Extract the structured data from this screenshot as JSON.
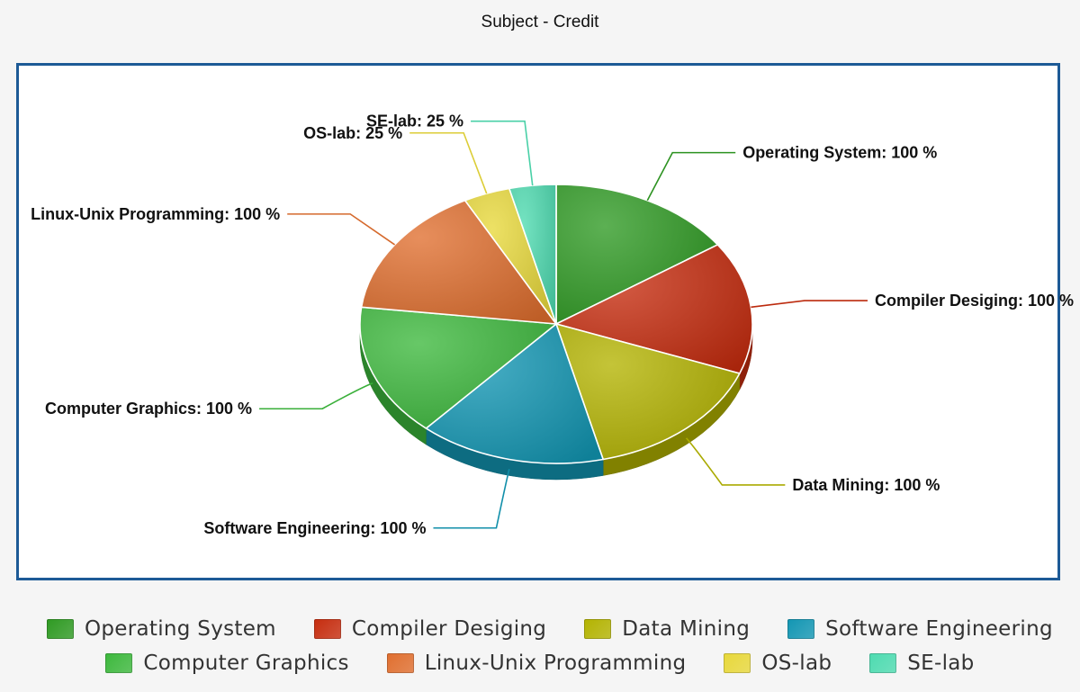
{
  "chart_data": {
    "type": "pie",
    "title": "Subject - Credit",
    "categories": [
      "Operating System",
      "Compiler Desiging",
      "Data Mining",
      "Software Engineering",
      "Computer Graphics",
      "Linux-Unix Programming",
      "OS-lab",
      "SE-lab"
    ],
    "values": [
      100,
      100,
      100,
      100,
      100,
      100,
      25,
      25
    ],
    "slice_labels": [
      "Operating System: 100 %",
      "Compiler Desiging: 100 %",
      "Data Mining: 100 %",
      "Software Engineering: 100 %",
      "Computer Graphics: 100 %",
      "Linux-Unix Programming: 100 %",
      "OS-lab: 25 %",
      "SE-lab: 25 %"
    ],
    "colors": [
      "#2e9a22",
      "#c62c0e",
      "#b3b300",
      "#1296b3",
      "#3cb83c",
      "#e06e2e",
      "#e8d83a",
      "#4ddbb0"
    ],
    "legend_position": "bottom",
    "style": "3d"
  }
}
